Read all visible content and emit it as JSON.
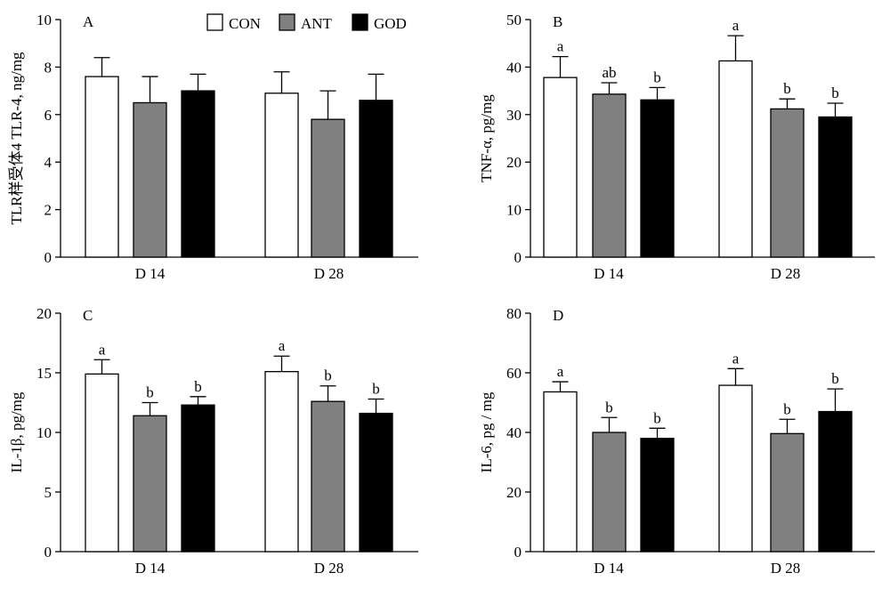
{
  "legend": {
    "placement": "top-right of panel A",
    "items": [
      {
        "name": "CON",
        "color": "#ffffff"
      },
      {
        "name": "ANT",
        "color": "#808080"
      },
      {
        "name": "GOD",
        "color": "#000000"
      }
    ]
  },
  "chart_data": [
    {
      "type": "bar",
      "panel_letter": "A",
      "ylabel": "TLR样受体4 TLR-4, ng/mg",
      "categories": [
        "D 14",
        "D 28"
      ],
      "ylim": [
        0,
        10
      ],
      "yticks": [
        0,
        2,
        4,
        6,
        8,
        10
      ],
      "series": [
        {
          "name": "CON",
          "values": [
            7.6,
            6.9
          ],
          "errors": [
            0.8,
            0.9
          ],
          "letters": [
            "",
            ""
          ]
        },
        {
          "name": "ANT",
          "values": [
            6.5,
            5.8
          ],
          "errors": [
            1.1,
            1.2
          ],
          "letters": [
            "",
            ""
          ]
        },
        {
          "name": "GOD",
          "values": [
            7.0,
            6.6
          ],
          "errors": [
            0.7,
            1.1
          ],
          "letters": [
            "",
            ""
          ]
        }
      ]
    },
    {
      "type": "bar",
      "panel_letter": "B",
      "ylabel": "TNF-α, pg/mg",
      "categories": [
        "D 14",
        "D 28"
      ],
      "ylim": [
        0,
        50
      ],
      "yticks": [
        0,
        10,
        20,
        30,
        40,
        50
      ],
      "series": [
        {
          "name": "CON",
          "values": [
            37.8,
            41.3
          ],
          "errors": [
            4.4,
            5.3
          ],
          "letters": [
            "a",
            "a"
          ]
        },
        {
          "name": "ANT",
          "values": [
            34.3,
            31.2
          ],
          "errors": [
            2.4,
            2.1
          ],
          "letters": [
            "ab",
            "b"
          ]
        },
        {
          "name": "GOD",
          "values": [
            33.1,
            29.5
          ],
          "errors": [
            2.6,
            2.9
          ],
          "letters": [
            "b",
            "b"
          ]
        }
      ]
    },
    {
      "type": "bar",
      "panel_letter": "C",
      "ylabel": "IL-1β, pg/mg",
      "categories": [
        "D 14",
        "D 28"
      ],
      "ylim": [
        0,
        20
      ],
      "yticks": [
        0,
        5,
        10,
        15,
        20
      ],
      "series": [
        {
          "name": "CON",
          "values": [
            14.9,
            15.1
          ],
          "errors": [
            1.2,
            1.3
          ],
          "letters": [
            "a",
            "a"
          ]
        },
        {
          "name": "ANT",
          "values": [
            11.4,
            12.6
          ],
          "errors": [
            1.1,
            1.3
          ],
          "letters": [
            "b",
            "b"
          ]
        },
        {
          "name": "GOD",
          "values": [
            12.3,
            11.6
          ],
          "errors": [
            0.7,
            1.2
          ],
          "letters": [
            "b",
            "b"
          ]
        }
      ]
    },
    {
      "type": "bar",
      "panel_letter": "D",
      "ylabel": "IL-6, pg / mg",
      "categories": [
        "D 14",
        "D 28"
      ],
      "ylim": [
        0,
        80
      ],
      "yticks": [
        0,
        20,
        40,
        60,
        80
      ],
      "series": [
        {
          "name": "CON",
          "values": [
            53.6,
            55.8
          ],
          "errors": [
            3.4,
            5.6
          ],
          "letters": [
            "a",
            "a"
          ]
        },
        {
          "name": "ANT",
          "values": [
            40.0,
            39.6
          ],
          "errors": [
            5.0,
            4.8
          ],
          "letters": [
            "b",
            "b"
          ]
        },
        {
          "name": "GOD",
          "values": [
            38.0,
            47.0
          ],
          "errors": [
            3.4,
            7.6
          ],
          "letters": [
            "b",
            "b"
          ]
        }
      ]
    }
  ]
}
